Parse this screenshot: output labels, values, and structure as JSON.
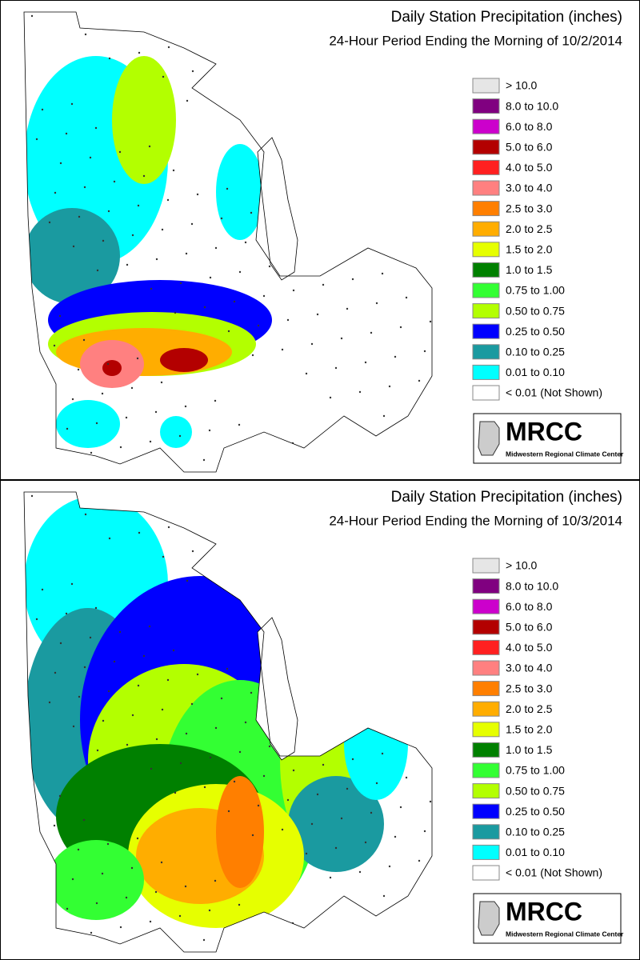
{
  "panels": [
    {
      "title": "Daily Station Precipitation (inches)",
      "subtitle": "24-Hour Period Ending the Morning of 10/2/2014",
      "legend": [
        {
          "label": "> 10.0",
          "color": "#e6e6e6"
        },
        {
          "label": "8.0 to 10.0",
          "color": "#800080"
        },
        {
          "label": "6.0 to 8.0",
          "color": "#cc00cc"
        },
        {
          "label": "5.0 to 6.0",
          "color": "#b30000"
        },
        {
          "label": "4.0 to 5.0",
          "color": "#ff2020"
        },
        {
          "label": "3.0 to 4.0",
          "color": "#ff8080"
        },
        {
          "label": "2.5 to 3.0",
          "color": "#ff7f00"
        },
        {
          "label": "2.0 to 2.5",
          "color": "#ffad00"
        },
        {
          "label": "1.5 to 2.0",
          "color": "#e6ff00"
        },
        {
          "label": "1.0 to 1.5",
          "color": "#008000"
        },
        {
          "label": "0.75 to 1.00",
          "color": "#33ff33"
        },
        {
          "label": "0.50 to 0.75",
          "color": "#b3ff00"
        },
        {
          "label": "0.25 to 0.50",
          "color": "#0000ff"
        },
        {
          "label": "0.10 to 0.25",
          "color": "#1a9aa0"
        },
        {
          "label": "0.01 to 0.10",
          "color": "#00ffff"
        },
        {
          "label": "< 0.01 (Not Shown)",
          "color": "#ffffff"
        }
      ],
      "logo": {
        "name": "MRCC",
        "full_name": "Midwestern Regional Climate Center"
      }
    },
    {
      "title": "Daily Station Precipitation (inches)",
      "subtitle": "24-Hour Period Ending the Morning of 10/3/2014",
      "legend": [
        {
          "label": "> 10.0",
          "color": "#e6e6e6"
        },
        {
          "label": "8.0 to 10.0",
          "color": "#800080"
        },
        {
          "label": "6.0 to 8.0",
          "color": "#cc00cc"
        },
        {
          "label": "5.0 to 6.0",
          "color": "#b30000"
        },
        {
          "label": "4.0 to 5.0",
          "color": "#ff2020"
        },
        {
          "label": "3.0 to 4.0",
          "color": "#ff8080"
        },
        {
          "label": "2.5 to 3.0",
          "color": "#ff7f00"
        },
        {
          "label": "2.0 to 2.5",
          "color": "#ffad00"
        },
        {
          "label": "1.5 to 2.0",
          "color": "#e6ff00"
        },
        {
          "label": "1.0 to 1.5",
          "color": "#008000"
        },
        {
          "label": "0.75 to 1.00",
          "color": "#33ff33"
        },
        {
          "label": "0.50 to 0.75",
          "color": "#b3ff00"
        },
        {
          "label": "0.25 to 0.50",
          "color": "#0000ff"
        },
        {
          "label": "0.10 to 0.25",
          "color": "#1a9aa0"
        },
        {
          "label": "0.01 to 0.10",
          "color": "#00ffff"
        },
        {
          "label": "< 0.01 (Not Shown)",
          "color": "#ffffff"
        }
      ],
      "logo": {
        "name": "MRCC",
        "full_name": "Midwestern Regional Climate Center"
      }
    }
  ]
}
